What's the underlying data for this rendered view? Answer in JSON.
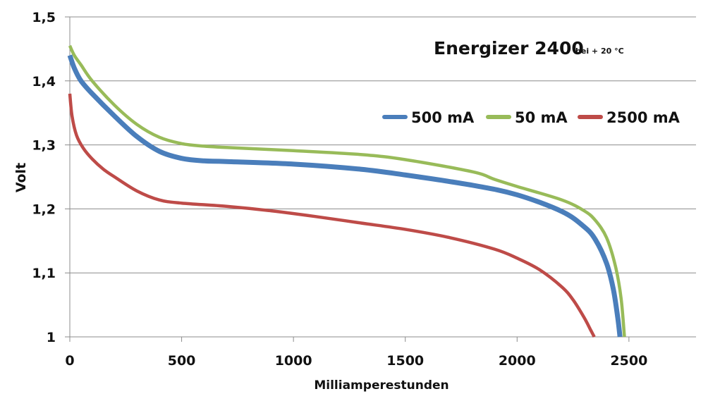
{
  "chart_data": {
    "type": "line",
    "title": "Energizer 2400",
    "subtitle": "bei + 20 °C",
    "xlabel": "Milliamperestunden",
    "ylabel": "Volt",
    "xlim": [
      0,
      2800
    ],
    "ylim": [
      1.0,
      1.5
    ],
    "xticks": [
      0,
      500,
      1000,
      1500,
      2000,
      2500
    ],
    "xtick_labels": [
      "0",
      "500",
      "1000",
      "1500",
      "2000",
      "2500"
    ],
    "yticks": [
      1.0,
      1.1,
      1.2,
      1.3,
      1.4,
      1.5
    ],
    "ytick_labels": [
      "1",
      "1,1",
      "1,2",
      "1,3",
      "1,4",
      "1,5"
    ],
    "grid": "horizontal",
    "legend_position": "top-right",
    "series": [
      {
        "name": "500 mA",
        "color": "#4a7ebb",
        "x": [
          0,
          20,
          50,
          100,
          200,
          300,
          400,
          500,
          600,
          700,
          1000,
          1300,
          1500,
          1800,
          2000,
          2200,
          2300,
          2350,
          2400,
          2430,
          2450,
          2460
        ],
        "y": [
          1.44,
          1.42,
          1.4,
          1.38,
          1.345,
          1.313,
          1.29,
          1.279,
          1.275,
          1.274,
          1.27,
          1.262,
          1.253,
          1.237,
          1.222,
          1.196,
          1.172,
          1.152,
          1.115,
          1.075,
          1.03,
          1.0
        ]
      },
      {
        "name": "50 mA",
        "color": "#98bb59",
        "x": [
          0,
          20,
          50,
          100,
          200,
          300,
          400,
          500,
          600,
          700,
          1000,
          1300,
          1500,
          1800,
          1900,
          2000,
          2200,
          2300,
          2350,
          2400,
          2440,
          2465,
          2480
        ],
        "y": [
          1.455,
          1.44,
          1.425,
          1.4,
          1.362,
          1.332,
          1.312,
          1.302,
          1.298,
          1.296,
          1.291,
          1.285,
          1.277,
          1.258,
          1.246,
          1.235,
          1.214,
          1.197,
          1.182,
          1.155,
          1.11,
          1.06,
          1.0
        ]
      },
      {
        "name": "2500 mA",
        "color": "#be4b48",
        "x": [
          0,
          10,
          30,
          60,
          100,
          150,
          200,
          300,
          400,
          500,
          700,
          900,
          1100,
          1300,
          1500,
          1700,
          1900,
          2000,
          2100,
          2200,
          2250,
          2300,
          2330,
          2345
        ],
        "y": [
          1.38,
          1.345,
          1.315,
          1.295,
          1.278,
          1.262,
          1.25,
          1.228,
          1.214,
          1.209,
          1.204,
          1.197,
          1.188,
          1.178,
          1.168,
          1.155,
          1.137,
          1.123,
          1.105,
          1.078,
          1.058,
          1.03,
          1.01,
          1.0
        ]
      }
    ]
  }
}
